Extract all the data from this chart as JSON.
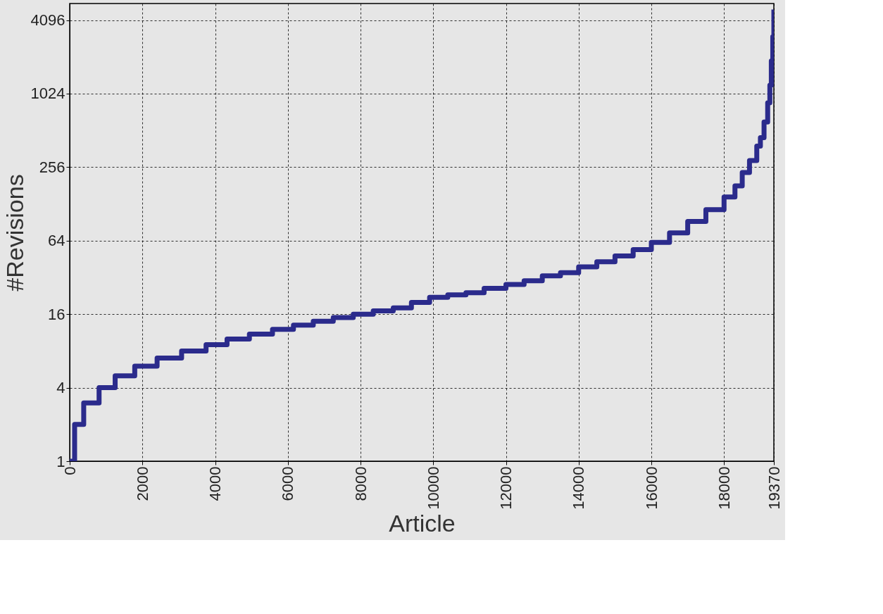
{
  "chart_data": {
    "type": "step",
    "xlabel": "Article",
    "ylabel": "#Revisions",
    "log": true,
    "grid": true,
    "xlim": [
      0,
      19370
    ],
    "xticks": [
      0,
      2000,
      4000,
      6000,
      8000,
      10000,
      12000,
      14000,
      16000,
      18000,
      19370
    ],
    "ylim": [
      1,
      5600
    ],
    "yticks": [
      1,
      4,
      16,
      64,
      256,
      1024,
      4096
    ],
    "x": [
      0,
      135,
      385,
      808,
      1250,
      1789,
      2404,
      3078,
      3751,
      4328,
      4943,
      5578,
      6155,
      6700,
      7250,
      7800,
      8350,
      8900,
      9400,
      9900,
      10400,
      10900,
      11400,
      12000,
      12500,
      13000,
      13500,
      14000,
      14500,
      15000,
      15500,
      16000,
      16500,
      17000,
      17500,
      18000,
      18300,
      18500,
      18700,
      18900,
      19000,
      19100,
      19200,
      19260,
      19300,
      19340,
      19370
    ],
    "series": [
      {
        "color": "#2b2b8c",
        "values": [
          1,
          2,
          3,
          4,
          5,
          6,
          7,
          8,
          9,
          10,
          11,
          12,
          13,
          14,
          15,
          16,
          17,
          18,
          20,
          22,
          23,
          24,
          26,
          28,
          30,
          33,
          35,
          39,
          43,
          48,
          54,
          62,
          74,
          92,
          115,
          146,
          180,
          231,
          290,
          380,
          446,
          600,
          862,
          1200,
          1900,
          3000,
          5000
        ]
      }
    ]
  }
}
